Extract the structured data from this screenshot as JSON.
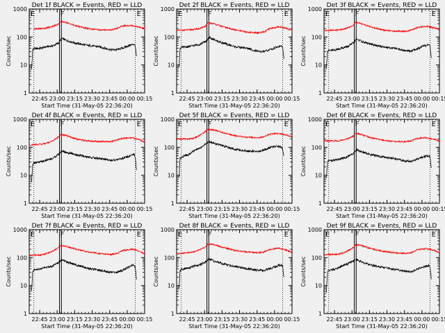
{
  "page": {
    "background": "#f0f0f0"
  },
  "colors": {
    "events": "#000000",
    "lld": "#ff0000",
    "axis": "#000000",
    "marker": "#000000"
  },
  "common": {
    "ylabel": "Counts/sec",
    "xlabel": "Start Time (31-May-05 22:36:20)",
    "xticks": [
      "22:45",
      "23:00",
      "23:15",
      "23:30",
      "23:45",
      "00:00",
      "00:15"
    ],
    "yticks": [
      "1",
      "10",
      "100",
      "1000"
    ],
    "marker_labels": [
      "E",
      "F",
      "E"
    ]
  },
  "chart_data": [
    {
      "type": "line",
      "title": "Det 1f BLACK = Events, RED = LLD",
      "y_scale": "log",
      "ylim": [
        1,
        1000
      ],
      "xlim_minutes_from_start": [
        0,
        99
      ],
      "marker_lines_minutes": [
        4,
        26,
        27,
        91
      ],
      "series": [
        {
          "name": "Events",
          "color": "#000000",
          "x_minutes": [
            2,
            3,
            4,
            10,
            15,
            20,
            25,
            28,
            32,
            40,
            50,
            60,
            70,
            75,
            80,
            87,
            90,
            91,
            92
          ],
          "y": [
            7,
            35,
            38,
            40,
            45,
            48,
            60,
            90,
            75,
            60,
            50,
            45,
            35,
            35,
            40,
            52,
            55,
            48,
            20
          ]
        },
        {
          "name": "LLD",
          "color": "#ff0000",
          "x_minutes": [
            4,
            10,
            15,
            20,
            25,
            27,
            32,
            40,
            50,
            60,
            70,
            75,
            80,
            88,
            95,
            99
          ],
          "y": [
            190,
            200,
            210,
            240,
            290,
            360,
            330,
            250,
            200,
            180,
            180,
            200,
            250,
            260,
            220,
            200
          ]
        }
      ]
    },
    {
      "type": "line",
      "title": "Det 2f BLACK = Events, RED = LLD",
      "y_scale": "log",
      "ylim": [
        1,
        1000
      ],
      "xlim_minutes_from_start": [
        0,
        99
      ],
      "marker_lines_minutes": [
        4,
        26,
        27,
        91
      ],
      "series": [
        {
          "name": "Events",
          "color": "#000000",
          "x_minutes": [
            2,
            3,
            4,
            10,
            15,
            20,
            25,
            28,
            32,
            40,
            50,
            60,
            70,
            75,
            80,
            87,
            90,
            91,
            92
          ],
          "y": [
            8,
            40,
            42,
            45,
            50,
            55,
            70,
            95,
            80,
            60,
            45,
            40,
            30,
            30,
            35,
            45,
            48,
            40,
            18
          ]
        },
        {
          "name": "LLD",
          "color": "#ff0000",
          "x_minutes": [
            0,
            10,
            15,
            20,
            25,
            27,
            32,
            40,
            50,
            60,
            70,
            75,
            80,
            88,
            95,
            99
          ],
          "y": [
            170,
            180,
            185,
            200,
            250,
            320,
            300,
            230,
            180,
            150,
            140,
            150,
            200,
            230,
            200,
            170
          ]
        }
      ]
    },
    {
      "type": "line",
      "title": "Det 3f BLACK = Events, RED = LLD",
      "y_scale": "log",
      "ylim": [
        1,
        1000
      ],
      "xlim_minutes_from_start": [
        0,
        99
      ],
      "marker_lines_minutes": [
        4,
        26,
        27,
        91
      ],
      "series": [
        {
          "name": "Events",
          "color": "#000000",
          "x_minutes": [
            2,
            3,
            4,
            10,
            15,
            20,
            25,
            28,
            32,
            40,
            50,
            60,
            70,
            75,
            80,
            87,
            90,
            91,
            92
          ],
          "y": [
            8,
            30,
            32,
            35,
            40,
            45,
            60,
            85,
            70,
            55,
            45,
            40,
            32,
            32,
            38,
            50,
            52,
            45,
            18
          ]
        },
        {
          "name": "LLD",
          "color": "#ff0000",
          "x_minutes": [
            0,
            10,
            15,
            20,
            25,
            27,
            32,
            40,
            50,
            60,
            70,
            75,
            80,
            88,
            95,
            99
          ],
          "y": [
            170,
            175,
            185,
            210,
            260,
            330,
            300,
            230,
            180,
            160,
            160,
            175,
            220,
            240,
            210,
            180
          ]
        }
      ]
    },
    {
      "type": "line",
      "title": "Det 4f BLACK = Events, RED = LLD",
      "y_scale": "log",
      "ylim": [
        1,
        1000
      ],
      "xlim_minutes_from_start": [
        0,
        99
      ],
      "marker_lines_minutes": [
        4,
        26,
        27,
        91
      ],
      "series": [
        {
          "name": "Events",
          "color": "#000000",
          "x_minutes": [
            2,
            3,
            4,
            10,
            15,
            20,
            25,
            28,
            32,
            40,
            50,
            60,
            70,
            75,
            80,
            87,
            90,
            91,
            92
          ],
          "y": [
            6,
            25,
            28,
            30,
            35,
            40,
            55,
            75,
            65,
            55,
            45,
            40,
            35,
            35,
            40,
            50,
            55,
            45,
            15
          ]
        },
        {
          "name": "LLD",
          "color": "#ff0000",
          "x_minutes": [
            0,
            10,
            15,
            20,
            25,
            27,
            32,
            40,
            50,
            60,
            70,
            75,
            80,
            88,
            95,
            99
          ],
          "y": [
            120,
            130,
            140,
            170,
            230,
            290,
            260,
            200,
            170,
            160,
            160,
            180,
            210,
            220,
            190,
            150
          ]
        }
      ]
    },
    {
      "type": "line",
      "title": "Det 5f BLACK = Events, RED = LLD",
      "y_scale": "log",
      "ylim": [
        1,
        1000
      ],
      "xlim_minutes_from_start": [
        0,
        99
      ],
      "marker_lines_minutes": [
        4,
        26,
        27,
        91
      ],
      "series": [
        {
          "name": "Events",
          "color": "#000000",
          "x_minutes": [
            2,
            3,
            4,
            10,
            15,
            20,
            25,
            28,
            32,
            40,
            50,
            60,
            70,
            75,
            80,
            87,
            90,
            91,
            92
          ],
          "y": [
            8,
            40,
            45,
            55,
            75,
            95,
            130,
            160,
            140,
            110,
            85,
            75,
            70,
            80,
            100,
            110,
            100,
            90,
            45
          ]
        },
        {
          "name": "LLD",
          "color": "#ff0000",
          "x_minutes": [
            0,
            10,
            15,
            20,
            25,
            27,
            32,
            40,
            50,
            60,
            70,
            75,
            80,
            88,
            95,
            99
          ],
          "y": [
            200,
            200,
            210,
            270,
            380,
            440,
            420,
            330,
            260,
            230,
            220,
            240,
            300,
            310,
            270,
            230
          ]
        }
      ]
    },
    {
      "type": "line",
      "title": "Det 6f BLACK = Events, RED = LLD",
      "y_scale": "log",
      "ylim": [
        1,
        1000
      ],
      "xlim_minutes_from_start": [
        0,
        99
      ],
      "marker_lines_minutes": [
        4,
        26,
        27,
        91
      ],
      "series": [
        {
          "name": "Events",
          "color": "#000000",
          "x_minutes": [
            2,
            3,
            4,
            10,
            15,
            20,
            25,
            28,
            32,
            40,
            50,
            60,
            70,
            75,
            80,
            87,
            90,
            91,
            92
          ],
          "y": [
            8,
            30,
            33,
            35,
            40,
            45,
            60,
            80,
            70,
            55,
            45,
            40,
            32,
            32,
            38,
            48,
            50,
            42,
            18
          ]
        },
        {
          "name": "LLD",
          "color": "#ff0000",
          "x_minutes": [
            0,
            10,
            15,
            20,
            25,
            27,
            32,
            40,
            50,
            60,
            70,
            75,
            80,
            88,
            95,
            99
          ],
          "y": [
            170,
            170,
            175,
            200,
            250,
            320,
            290,
            220,
            180,
            160,
            160,
            170,
            210,
            220,
            190,
            160
          ]
        }
      ]
    },
    {
      "type": "line",
      "title": "Det 7f BLACK = Events, RED = LLD",
      "y_scale": "log",
      "ylim": [
        1,
        1000
      ],
      "xlim_minutes_from_start": [
        0,
        99
      ],
      "marker_lines_minutes": [
        4,
        26,
        27,
        91
      ],
      "series": [
        {
          "name": "Events",
          "color": "#000000",
          "x_minutes": [
            2,
            3,
            4,
            10,
            15,
            20,
            25,
            28,
            32,
            40,
            50,
            60,
            70,
            75,
            80,
            87,
            90,
            91,
            92
          ],
          "y": [
            6,
            30,
            35,
            40,
            45,
            50,
            65,
            85,
            70,
            55,
            42,
            35,
            30,
            30,
            35,
            50,
            55,
            45,
            18
          ]
        },
        {
          "name": "LLD",
          "color": "#ff0000",
          "x_minutes": [
            0,
            10,
            15,
            20,
            25,
            27,
            32,
            40,
            50,
            60,
            70,
            75,
            80,
            88,
            95,
            99
          ],
          "y": [
            120,
            125,
            140,
            170,
            230,
            270,
            250,
            200,
            160,
            140,
            130,
            140,
            180,
            200,
            170,
            130
          ]
        }
      ]
    },
    {
      "type": "line",
      "title": "Det 8f BLACK = Events, RED = LLD",
      "y_scale": "log",
      "ylim": [
        1,
        1000
      ],
      "xlim_minutes_from_start": [
        0,
        99
      ],
      "marker_lines_minutes": [
        4,
        26,
        27,
        91
      ],
      "series": [
        {
          "name": "Events",
          "color": "#000000",
          "x_minutes": [
            2,
            3,
            4,
            10,
            15,
            20,
            25,
            28,
            32,
            40,
            50,
            60,
            70,
            75,
            80,
            87,
            90,
            91,
            92
          ],
          "y": [
            7,
            35,
            38,
            42,
            50,
            55,
            70,
            90,
            75,
            60,
            48,
            40,
            35,
            35,
            40,
            52,
            55,
            48,
            20
          ]
        },
        {
          "name": "LLD",
          "color": "#ff0000",
          "x_minutes": [
            0,
            10,
            15,
            20,
            25,
            27,
            32,
            40,
            50,
            60,
            70,
            75,
            80,
            88,
            95,
            99
          ],
          "y": [
            140,
            150,
            160,
            190,
            250,
            310,
            290,
            230,
            180,
            160,
            150,
            160,
            200,
            220,
            180,
            150
          ]
        }
      ]
    },
    {
      "type": "line",
      "title": "Det 9f BLACK = Events, RED = LLD",
      "y_scale": "log",
      "ylim": [
        1,
        1000
      ],
      "xlim_minutes_from_start": [
        0,
        99
      ],
      "marker_lines_minutes": [
        4,
        26,
        27,
        91
      ],
      "series": [
        {
          "name": "Events",
          "color": "#000000",
          "x_minutes": [
            2,
            3,
            4,
            10,
            15,
            20,
            25,
            28,
            32,
            40,
            50,
            60,
            70,
            75,
            80,
            87,
            90,
            91,
            92
          ],
          "y": [
            6,
            30,
            35,
            40,
            50,
            60,
            75,
            85,
            70,
            55,
            45,
            38,
            32,
            32,
            38,
            50,
            52,
            45,
            18
          ]
        },
        {
          "name": "LLD",
          "color": "#ff0000",
          "x_minutes": [
            0,
            10,
            15,
            20,
            25,
            27,
            32,
            40,
            50,
            60,
            70,
            75,
            80,
            88,
            95,
            99
          ],
          "y": [
            130,
            130,
            140,
            170,
            230,
            290,
            270,
            210,
            170,
            150,
            140,
            150,
            190,
            210,
            180,
            140
          ]
        }
      ]
    }
  ]
}
